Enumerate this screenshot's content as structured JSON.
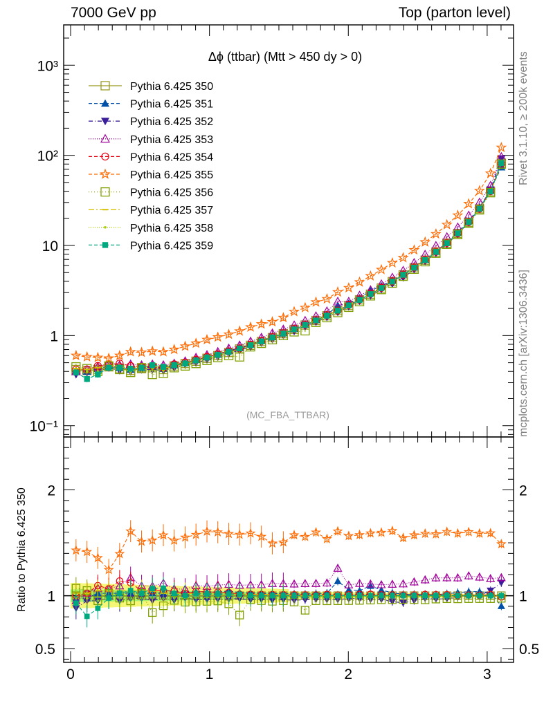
{
  "header": {
    "energy": "7000 GeV pp",
    "process": "Top (parton level)"
  },
  "side_labels": {
    "rivet": "Rivet 3.1.10, ≥ 200k events",
    "mcplots": "mcplots.cern.ch [arXiv:1306.3436]"
  },
  "chart_data": [
    {
      "type": "scatter",
      "title": "Δϕ (ttbar) (Mtt > 450 dy > 0)",
      "watermark": "(MC_FBA_TTBAR)",
      "ylog": true,
      "xlim": [
        -0.05,
        3.19
      ],
      "ylim": [
        0.075,
        2800
      ],
      "yticks": [
        {
          "v": 0.1,
          "label": "10⁻¹"
        },
        {
          "v": 1,
          "label": "1"
        },
        {
          "v": 10,
          "label": "10"
        },
        {
          "v": 100,
          "label": "10²"
        },
        {
          "v": 1000,
          "label": "10³"
        }
      ],
      "legend_position": "top-left",
      "x": [
        0.039,
        0.118,
        0.196,
        0.275,
        0.353,
        0.432,
        0.511,
        0.589,
        0.668,
        0.746,
        0.825,
        0.903,
        0.982,
        1.06,
        1.139,
        1.217,
        1.296,
        1.374,
        1.453,
        1.532,
        1.61,
        1.689,
        1.767,
        1.846,
        1.924,
        2.003,
        2.081,
        2.16,
        2.238,
        2.317,
        2.395,
        2.474,
        2.553,
        2.631,
        2.71,
        2.788,
        2.867,
        2.945,
        3.024,
        3.102
      ],
      "series": [
        {
          "name": "Pythia 6.425 350",
          "color": "#9a9a22",
          "marker": "square-open",
          "dash": "",
          "values": [
            0.42,
            0.41,
            0.42,
            0.45,
            0.43,
            0.41,
            0.43,
            0.44,
            0.42,
            0.46,
            0.49,
            0.52,
            0.56,
            0.6,
            0.65,
            0.71,
            0.78,
            0.86,
            0.95,
            1.05,
            1.17,
            1.31,
            1.47,
            1.66,
            1.89,
            2.16,
            2.49,
            2.88,
            3.37,
            3.97,
            4.72,
            5.66,
            6.87,
            8.47,
            10.6,
            13.6,
            18.1,
            25.5,
            39.6,
            82.0
          ]
        },
        {
          "name": "Pythia 6.425 351",
          "color": "#0050a8",
          "marker": "triangle-up",
          "dash": "5,3",
          "values": [
            0.41,
            0.4,
            0.43,
            0.46,
            0.44,
            0.42,
            0.44,
            0.45,
            0.43,
            0.47,
            0.5,
            0.54,
            0.58,
            0.62,
            0.68,
            0.73,
            0.8,
            0.88,
            0.97,
            1.07,
            1.19,
            1.33,
            1.5,
            1.7,
            2.15,
            2.28,
            2.61,
            3.15,
            3.55,
            4.08,
            4.78,
            5.73,
            6.95,
            8.55,
            10.8,
            14.0,
            18.8,
            26.5,
            40.8,
            74.0
          ]
        },
        {
          "name": "Pythia 6.425 352",
          "color": "#3a1e9a",
          "marker": "triangle-down",
          "dash": "6,3,1,3",
          "values": [
            0.37,
            0.39,
            0.4,
            0.44,
            0.41,
            0.4,
            0.42,
            0.42,
            0.41,
            0.44,
            0.48,
            0.5,
            0.54,
            0.58,
            0.63,
            0.69,
            0.75,
            0.83,
            0.91,
            1.01,
            1.12,
            1.26,
            1.42,
            1.6,
            1.82,
            2.1,
            2.42,
            2.78,
            3.25,
            3.75,
            4.4,
            5.4,
            6.7,
            8.2,
            10.3,
            13.4,
            18.0,
            25.5,
            41.5,
            92.0
          ]
        },
        {
          "name": "Pythia 6.425 353",
          "color": "#a0009a",
          "marker": "triangle-open",
          "dash": "1,2",
          "values": [
            0.4,
            0.42,
            0.45,
            0.48,
            0.47,
            0.48,
            0.47,
            0.48,
            0.47,
            0.49,
            0.52,
            0.57,
            0.61,
            0.66,
            0.72,
            0.78,
            0.86,
            0.95,
            1.06,
            1.17,
            1.3,
            1.46,
            1.64,
            1.86,
            2.38,
            2.38,
            2.78,
            3.2,
            3.72,
            4.4,
            5.25,
            6.4,
            7.9,
            9.9,
            12.4,
            15.9,
            21.5,
            30.0,
            46.0,
            96.0
          ]
        },
        {
          "name": "Pythia 6.425 354",
          "color": "#e8000e",
          "marker": "circle-open",
          "dash": "5,3",
          "values": [
            0.42,
            0.42,
            0.46,
            0.48,
            0.49,
            0.46,
            0.45,
            0.46,
            0.44,
            0.48,
            0.5,
            0.54,
            0.58,
            0.62,
            0.67,
            0.72,
            0.79,
            0.87,
            0.96,
            1.06,
            1.18,
            1.32,
            1.48,
            1.68,
            1.9,
            2.18,
            2.52,
            2.92,
            3.4,
            4.0,
            4.75,
            5.7,
            6.95,
            8.55,
            10.7,
            13.6,
            18.2,
            25.6,
            40.0,
            81.0
          ]
        },
        {
          "name": "Pythia 6.425 355",
          "color": "#ff6a00",
          "marker": "star-open",
          "dash": "5,3",
          "values": [
            0.6,
            0.58,
            0.57,
            0.56,
            0.6,
            0.66,
            0.65,
            0.67,
            0.66,
            0.7,
            0.76,
            0.82,
            0.9,
            0.96,
            1.03,
            1.12,
            1.24,
            1.34,
            1.42,
            1.58,
            1.84,
            2.04,
            2.35,
            2.55,
            3.04,
            3.38,
            3.92,
            4.58,
            5.38,
            6.4,
            7.3,
            8.9,
            10.9,
            13.4,
            17.0,
            21.6,
            29.0,
            40.5,
            63.0,
            122.0
          ]
        },
        {
          "name": "Pythia 6.425 356",
          "color": "#80a000",
          "marker": "square-open",
          "dash": "1,3",
          "values": [
            0.45,
            0.43,
            0.4,
            0.46,
            0.42,
            0.39,
            0.44,
            0.37,
            0.38,
            0.44,
            0.46,
            0.49,
            0.53,
            0.57,
            0.6,
            0.58,
            0.75,
            0.82,
            0.9,
            1.0,
            1.1,
            1.13,
            1.4,
            1.58,
            1.8,
            2.06,
            2.38,
            2.76,
            3.24,
            3.82,
            4.55,
            5.45,
            6.6,
            8.2,
            10.3,
            13.2,
            17.6,
            24.8,
            38.5,
            80.0
          ]
        },
        {
          "name": "Pythia 6.425 357",
          "color": "#d8c000",
          "marker": "dash",
          "dash": "8,3,2,3",
          "values": [
            0.43,
            0.42,
            0.44,
            0.47,
            0.45,
            0.43,
            0.45,
            0.46,
            0.43,
            0.47,
            0.5,
            0.53,
            0.57,
            0.61,
            0.66,
            0.72,
            0.79,
            0.87,
            0.96,
            1.06,
            1.17,
            1.31,
            1.47,
            1.66,
            1.89,
            2.16,
            2.49,
            2.88,
            3.37,
            3.97,
            4.72,
            5.66,
            6.87,
            8.47,
            10.6,
            13.6,
            18.1,
            25.5,
            39.6,
            82.0
          ]
        },
        {
          "name": "Pythia 6.425 358",
          "color": "#a8d000",
          "marker": "dot",
          "dash": "1,2",
          "values": [
            0.41,
            0.4,
            0.4,
            0.44,
            0.42,
            0.4,
            0.42,
            0.43,
            0.41,
            0.45,
            0.48,
            0.51,
            0.55,
            0.59,
            0.64,
            0.7,
            0.77,
            0.85,
            0.94,
            1.04,
            1.16,
            1.3,
            1.46,
            1.65,
            1.88,
            2.15,
            2.48,
            2.87,
            3.36,
            3.96,
            4.7,
            5.64,
            6.85,
            8.44,
            10.6,
            13.6,
            18.0,
            25.4,
            39.4,
            81.0
          ]
        },
        {
          "name": "Pythia 6.425 359",
          "color": "#00a880",
          "marker": "square",
          "dash": "5,3",
          "values": [
            0.39,
            0.33,
            0.37,
            0.44,
            0.44,
            0.43,
            0.44,
            0.47,
            0.45,
            0.47,
            0.49,
            0.53,
            0.57,
            0.61,
            0.66,
            0.72,
            0.78,
            0.86,
            0.95,
            1.05,
            1.17,
            1.31,
            1.47,
            1.66,
            1.89,
            2.16,
            2.49,
            2.88,
            3.37,
            3.97,
            4.72,
            5.66,
            6.87,
            8.47,
            10.6,
            13.6,
            18.1,
            25.5,
            39.6,
            82.0
          ]
        }
      ]
    },
    {
      "type": "scatter",
      "ylabel": "Ratio to Pythia 6.425 350",
      "xlim": [
        -0.05,
        3.19
      ],
      "ylim": [
        0.37,
        2.5
      ],
      "xticks": [
        0,
        1,
        2,
        3
      ],
      "yticks": [
        {
          "v": 0.5,
          "label": "0.5"
        },
        {
          "v": 1,
          "label": "1"
        },
        {
          "v": 2,
          "label": "2"
        }
      ],
      "reference_line": 1,
      "note": "ratio of each series to Pythia 6.425 350, with statistical bands"
    }
  ]
}
